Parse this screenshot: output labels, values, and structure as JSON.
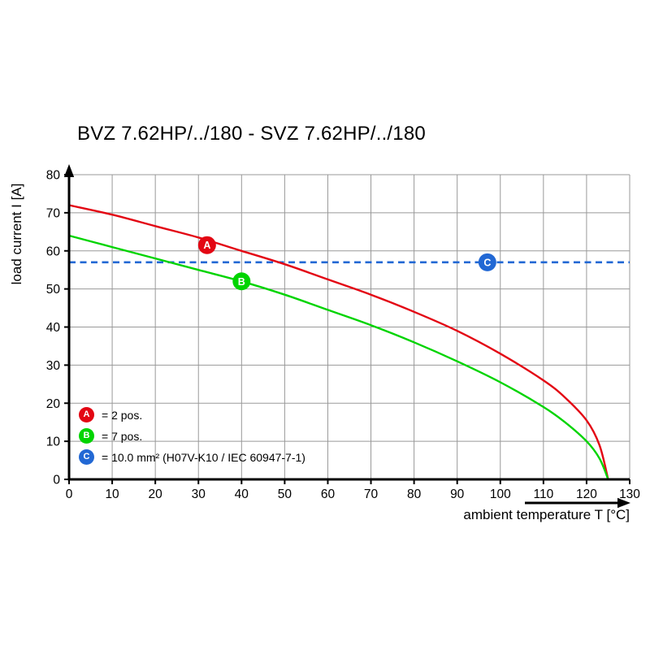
{
  "chart_data": {
    "type": "line",
    "title": "BVZ 7.62HP/../180 - SVZ 7.62HP/../180",
    "xlabel": "ambient temperature T [°C]",
    "ylabel": "load current I [A]",
    "xlim": [
      0,
      130
    ],
    "ylim": [
      0,
      80
    ],
    "xticks": [
      0,
      10,
      20,
      30,
      40,
      50,
      60,
      70,
      80,
      90,
      100,
      110,
      120,
      130
    ],
    "yticks": [
      0,
      10,
      20,
      30,
      40,
      50,
      60,
      70,
      80
    ],
    "grid": true,
    "grid_color": "#999999",
    "axis_color": "#000000",
    "legend_position": "bottom-left-inside",
    "series": [
      {
        "name": "A",
        "legend": "= 2 pos.",
        "color": "#e30613",
        "style": "solid",
        "x": [
          0,
          10,
          20,
          30,
          40,
          50,
          60,
          70,
          80,
          90,
          100,
          110,
          115,
          120,
          123,
          125
        ],
        "y": [
          72,
          69.5,
          66.5,
          63.5,
          60,
          56.5,
          52.5,
          48.5,
          44,
          39,
          33,
          26,
          21.5,
          15.5,
          9,
          0
        ],
        "marker": {
          "label": "A",
          "x": 32,
          "y": 61.5
        }
      },
      {
        "name": "B",
        "legend": "= 7 pos.",
        "color": "#00d400",
        "style": "solid",
        "x": [
          0,
          10,
          20,
          30,
          40,
          50,
          60,
          70,
          80,
          90,
          100,
          110,
          115,
          120,
          123,
          125
        ],
        "y": [
          64,
          61,
          58,
          55,
          52,
          48.5,
          44.5,
          40.5,
          36,
          31,
          25.5,
          19,
          15,
          10,
          5.5,
          0
        ],
        "marker": {
          "label": "B",
          "x": 40,
          "y": 52
        }
      },
      {
        "name": "C",
        "legend": "= 10.0 mm² (H07V-K10 / IEC 60947-7-1)",
        "color": "#2268d4",
        "style": "dashed",
        "x": [
          0,
          130
        ],
        "y": [
          57,
          57
        ],
        "marker": {
          "label": "C",
          "x": 97,
          "y": 57
        }
      }
    ]
  }
}
